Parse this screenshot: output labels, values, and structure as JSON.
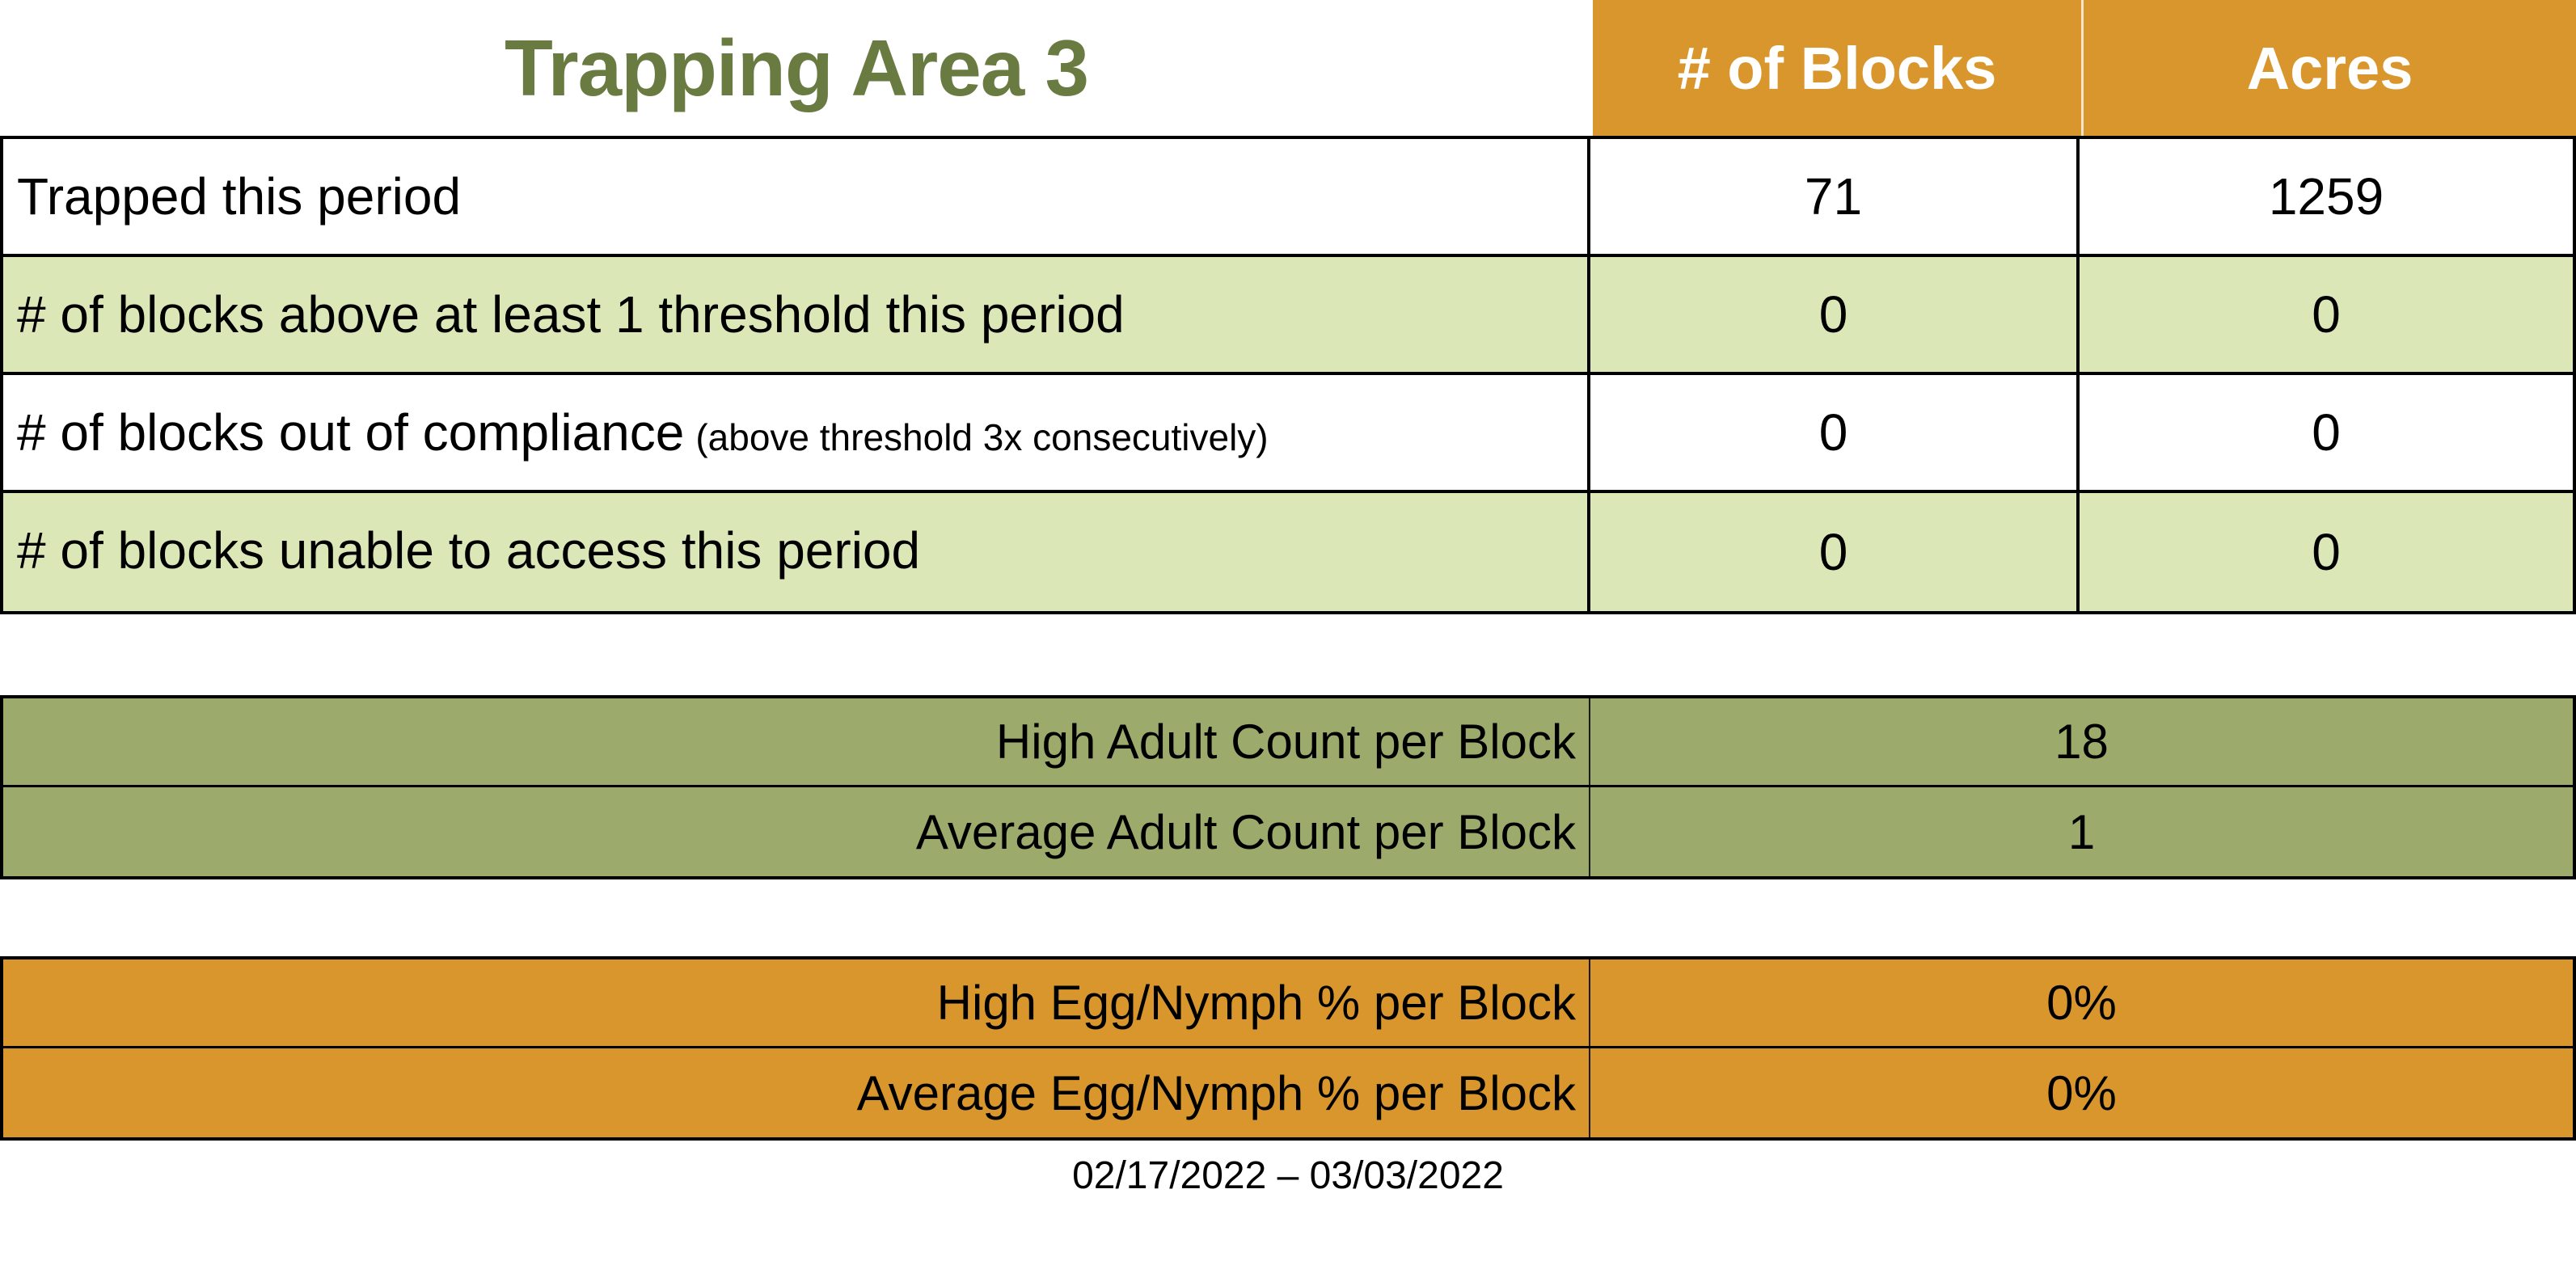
{
  "title": "Trapping Area 3",
  "header": {
    "col_blocks": "# of Blocks",
    "col_acres": "Acres"
  },
  "summary_table": {
    "rows": [
      {
        "label": "Trapped this period",
        "note": "",
        "blocks": "71",
        "acres": "1259"
      },
      {
        "label": "# of blocks above at least 1 threshold this period",
        "note": "",
        "blocks": "0",
        "acres": "0"
      },
      {
        "label": "# of blocks out of compliance",
        "note": "(above threshold 3x consecutively)",
        "blocks": "0",
        "acres": "0"
      },
      {
        "label": "# of blocks unable to access this period",
        "note": "",
        "blocks": "0",
        "acres": "0"
      }
    ]
  },
  "adult_table": {
    "rows": [
      {
        "label": "High Adult Count per Block",
        "value": "18"
      },
      {
        "label": "Average Adult Count per Block",
        "value": "1"
      }
    ]
  },
  "egg_table": {
    "rows": [
      {
        "label": "High Egg/Nymph % per Block",
        "value": "0%"
      },
      {
        "label": "Average Egg/Nymph % per Block",
        "value": "0%"
      }
    ]
  },
  "footer": {
    "period": "02/17/2022 – 03/03/2022"
  },
  "colors": {
    "accent_orange": "#D8962D",
    "row_light_green": "#DCE7B8",
    "adult_olive": "#9CAA6C",
    "title_green": "#6A7B42",
    "header_text": "#FFFFFF",
    "border_black": "#000000"
  }
}
